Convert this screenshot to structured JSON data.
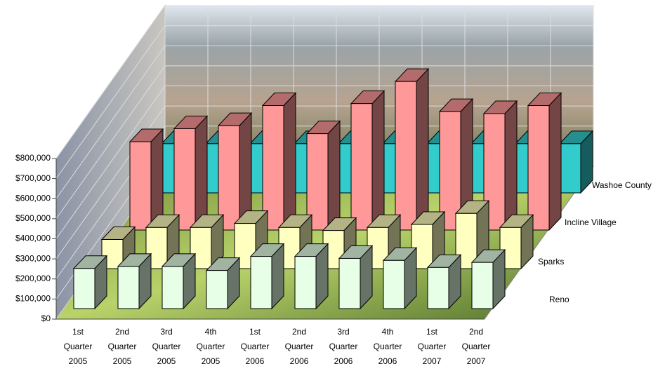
{
  "chart_data": {
    "type": "bar3d",
    "categories": [
      "1st Quarter 2005",
      "2nd Quarter 2005",
      "3rd Quarter 2005",
      "4th Quarter 2005",
      "1st Quarter 2006",
      "2nd Quarter 2006",
      "3rd Quarter 2006",
      "4th Quarter 2006",
      "1st Quarter 2007",
      "2nd Quarter 2007"
    ],
    "series": [
      {
        "name": "Reno",
        "color": "#e6ffe6",
        "values": [
          200000,
          210000,
          210000,
          190000,
          260000,
          260000,
          250000,
          240000,
          205000,
          230000
        ]
      },
      {
        "name": "Sparks",
        "color": "#ffffc0",
        "values": [
          145000,
          205000,
          205000,
          225000,
          205000,
          190000,
          205000,
          220000,
          275000,
          205000
        ]
      },
      {
        "name": "Incline Village",
        "color": "#ff9999",
        "values": [
          440000,
          505000,
          520000,
          620000,
          480000,
          630000,
          740000,
          590000,
          580000,
          620000
        ]
      },
      {
        "name": "Washoe County",
        "color": "#33cccc",
        "values": [
          245000,
          245000,
          245000,
          245000,
          245000,
          245000,
          245000,
          245000,
          245000,
          245000
        ]
      }
    ],
    "ylim": [
      0,
      800000
    ],
    "yticks": [
      {
        "value": 0,
        "label": "$0"
      },
      {
        "value": 100000,
        "label": "$100,000"
      },
      {
        "value": 200000,
        "label": "$200,000"
      },
      {
        "value": 300000,
        "label": "$300,000"
      },
      {
        "value": 400000,
        "label": "$400,000"
      },
      {
        "value": 500000,
        "label": "$500,000"
      },
      {
        "value": 600000,
        "label": "$600,000"
      },
      {
        "value": 700000,
        "label": "$700,000"
      },
      {
        "value": 800000,
        "label": "$800,000"
      }
    ],
    "grid": true
  }
}
